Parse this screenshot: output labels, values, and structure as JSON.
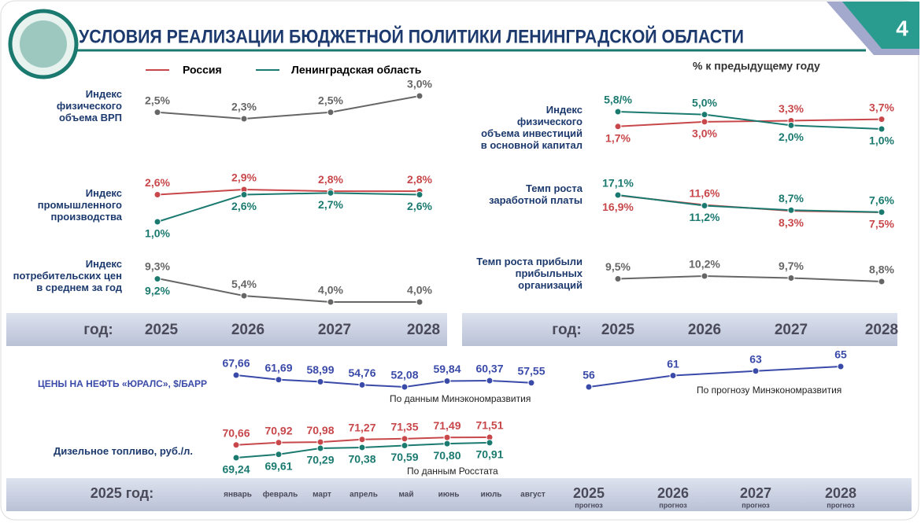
{
  "header": {
    "title": "УСЛОВИЯ РЕАЛИЗАЦИИ БЮДЖЕТНОЙ ПОЛИТИКИ ЛЕНИНГРАДСКОЙ ОБЛАСТИ",
    "page_number": "4"
  },
  "legend": {
    "items": [
      {
        "name": "Россия",
        "color": "#c8474a"
      },
      {
        "name": "Ленинградская область",
        "color": "#1b7a70"
      }
    ],
    "unit": "% к предыдущему году"
  },
  "year_axis_left": {
    "label": "год:",
    "categories": [
      "2025",
      "2026",
      "2027",
      "2028"
    ]
  },
  "year_axis_right": {
    "label": "год:",
    "categories": [
      "2025",
      "2026",
      "2027",
      "2028"
    ]
  },
  "month_axis": {
    "label": "2025 год:",
    "categories": [
      "январь",
      "февраль",
      "март",
      "апрель",
      "май",
      "июнь",
      "июль",
      "август"
    ]
  },
  "forecast_axis": {
    "categories": [
      "2025",
      "2026",
      "2027",
      "2028"
    ],
    "note": "прогноз"
  },
  "chart_data": [
    {
      "type": "line",
      "label": "Индекс\nфизического\nобъема ВРП",
      "series": [
        {
          "color": "#666666",
          "values": [
            2.5,
            2.3,
            2.5,
            3.0
          ],
          "value_labels": [
            "2,5%",
            "2,3%",
            "2,5%",
            "3,0%"
          ]
        }
      ]
    },
    {
      "type": "line",
      "label": "Индекс\nпромышленного\nпроизводства",
      "series": [
        {
          "color": "#c8474a",
          "values": [
            2.6,
            2.9,
            2.8,
            2.8
          ],
          "value_labels": [
            "2,6%",
            "2,9%",
            "2,8%",
            "2,8%"
          ]
        },
        {
          "color": "#1b7a70",
          "values": [
            1.0,
            2.6,
            2.7,
            2.6
          ],
          "value_labels": [
            "1,0%",
            "2,6%",
            "2,7%",
            "2,6%"
          ]
        }
      ]
    },
    {
      "type": "line",
      "label": "Индекс\nпотребительских цен\nв среднем за год",
      "series": [
        {
          "color": "#666666",
          "values": [
            9.3,
            5.4,
            4.0,
            4.0
          ],
          "value_labels": [
            "9,3%",
            "5,4%",
            "4,0%",
            "4,0%"
          ]
        },
        {
          "color": "#1b7a70",
          "values": [
            9.2,
            null,
            null,
            null
          ],
          "value_labels": [
            "9,2%",
            null,
            null,
            null
          ]
        }
      ]
    },
    {
      "type": "line",
      "label": "Индекс\nфизического\nобъема инвестиций\nв основной капитал",
      "series": [
        {
          "color": "#c8474a",
          "values": [
            1.7,
            3.0,
            3.3,
            3.7
          ],
          "value_labels": [
            "1,7%",
            "3,0%",
            "3,3%",
            "3,7%"
          ]
        },
        {
          "color": "#1b7a70",
          "values": [
            5.8,
            5.0,
            2.0,
            1.0
          ],
          "value_labels": [
            "5,8/%",
            "5,0%",
            "2,0%",
            "1,0%"
          ]
        }
      ]
    },
    {
      "type": "line",
      "label": "Темп роста\nзаработной платы",
      "series": [
        {
          "color": "#c8474a",
          "values": [
            16.9,
            11.6,
            8.3,
            7.5
          ],
          "value_labels": [
            "16,9%",
            "11,6%",
            "8,3%",
            "7,5%"
          ]
        },
        {
          "color": "#1b7a70",
          "values": [
            17.1,
            11.2,
            8.7,
            7.6
          ],
          "value_labels": [
            "17,1%",
            "11,2%",
            "8,7%",
            "7,6%"
          ]
        }
      ]
    },
    {
      "type": "line",
      "label": "Темп роста прибыли\nприбыльных\nорганизаций",
      "series": [
        {
          "color": "#666666",
          "values": [
            9.5,
            10.2,
            9.7,
            8.8
          ],
          "value_labels": [
            "9,5%",
            "10,2%",
            "9,7%",
            "8,8%"
          ]
        }
      ]
    },
    {
      "type": "line",
      "label": "ЦЕНЫ НА НЕФТЬ «ЮРАЛС», $/БАРР",
      "source": "По данным Минэкономразвития",
      "series": [
        {
          "color": "#3a4aa8",
          "values": [
            67.66,
            61.69,
            58.99,
            54.76,
            52.08,
            59.84,
            60.37,
            57.55
          ],
          "value_labels": [
            "67,66",
            "61,69",
            "58,99",
            "54,76",
            "52,08",
            "59,84",
            "60,37",
            "57,55"
          ]
        }
      ]
    },
    {
      "type": "line",
      "source": "По прогнозу Минэкономразвития",
      "series": [
        {
          "color": "#3a4aa8",
          "values": [
            56,
            61,
            63,
            65
          ]
        }
      ]
    },
    {
      "type": "line",
      "label": "Дизельное топливо, руб./л.",
      "source": "По данным Росстата",
      "series": [
        {
          "color": "#c8474a",
          "values": [
            70.66,
            70.92,
            70.98,
            71.27,
            71.35,
            71.49,
            71.51
          ],
          "value_labels": [
            "70,66",
            "70,92",
            "70,98",
            "71,27",
            "71,35",
            "71,49",
            "71,51"
          ]
        },
        {
          "color": "#1b7a70",
          "values": [
            69.24,
            69.61,
            70.29,
            70.38,
            70.59,
            70.8,
            70.91
          ],
          "value_labels": [
            "69,24",
            "69,61",
            "70,29",
            "70,38",
            "70,59",
            "70,80",
            "70,91"
          ]
        }
      ]
    }
  ]
}
